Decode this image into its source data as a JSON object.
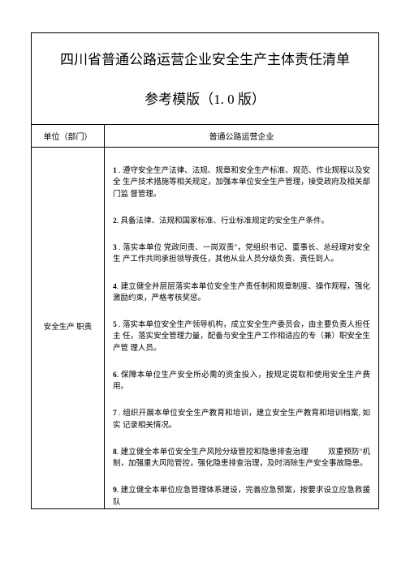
{
  "title1": "四川省普通公路运营企业安全生产主体责任清单",
  "title2": "参考模版（1. 0 版）",
  "unit_label": "单位（部门）",
  "unit_value": "普通公路运营企业",
  "category": "安全生产 职责",
  "items": [
    {
      "num": "1",
      "text": " . 遵守安全生产法律、法规、规章和安全生产标准、规范、作业规程以及安全 生产技术措施等相关规定，加强本单位安全生产管理，接受政府及相关部门监 督管理。"
    },
    {
      "num": "2",
      "text": ". 具备法律、法规和国家标准、行业标准规定的安全生产条件。"
    },
    {
      "num": "3",
      "text": " . 落实本单位 党政同责、一岗双责\"，党组织书记、董事长、总经理对安全生 产工作共同承担领导责任，其他从业人员分级负责、责任到人。"
    },
    {
      "num": "4",
      "text": ". 建立健全并层层落实本单位安全生产责任制和规章制度、操作规程，强化激励约束，严格考核奖惩。"
    },
    {
      "num": "5",
      "text": " . 落实本单位安全生产领导机构，成立安全生产委员会，由主要负责人担任主 任，落实安全管理力量，配备与安全生产工作相适应的专（兼）职安全生产管 理人员。"
    },
    {
      "num": "6",
      "text": ". 保障本单位生产安全所必需的资金投入，按规定提取和使用安全生产费用。"
    },
    {
      "num": "7",
      "text": " . 组织开展本单位安全生产教育和培训，建立安全生产教育和培训档案, 如实 记录相关情况。"
    },
    {
      "num": "8",
      "text": ". 建立健全本单位安全生产风险分级管控和隐患排查治理",
      "suffix": "双重预防\"机制，加强重大风险管控，强化隐患排查治理，及时消除生产安全事故隐患。"
    },
    {
      "num": "9",
      "text": ". 建立健全本单位应急管理体系建设，完善应急预案，按要求设立应急救援队"
    }
  ]
}
